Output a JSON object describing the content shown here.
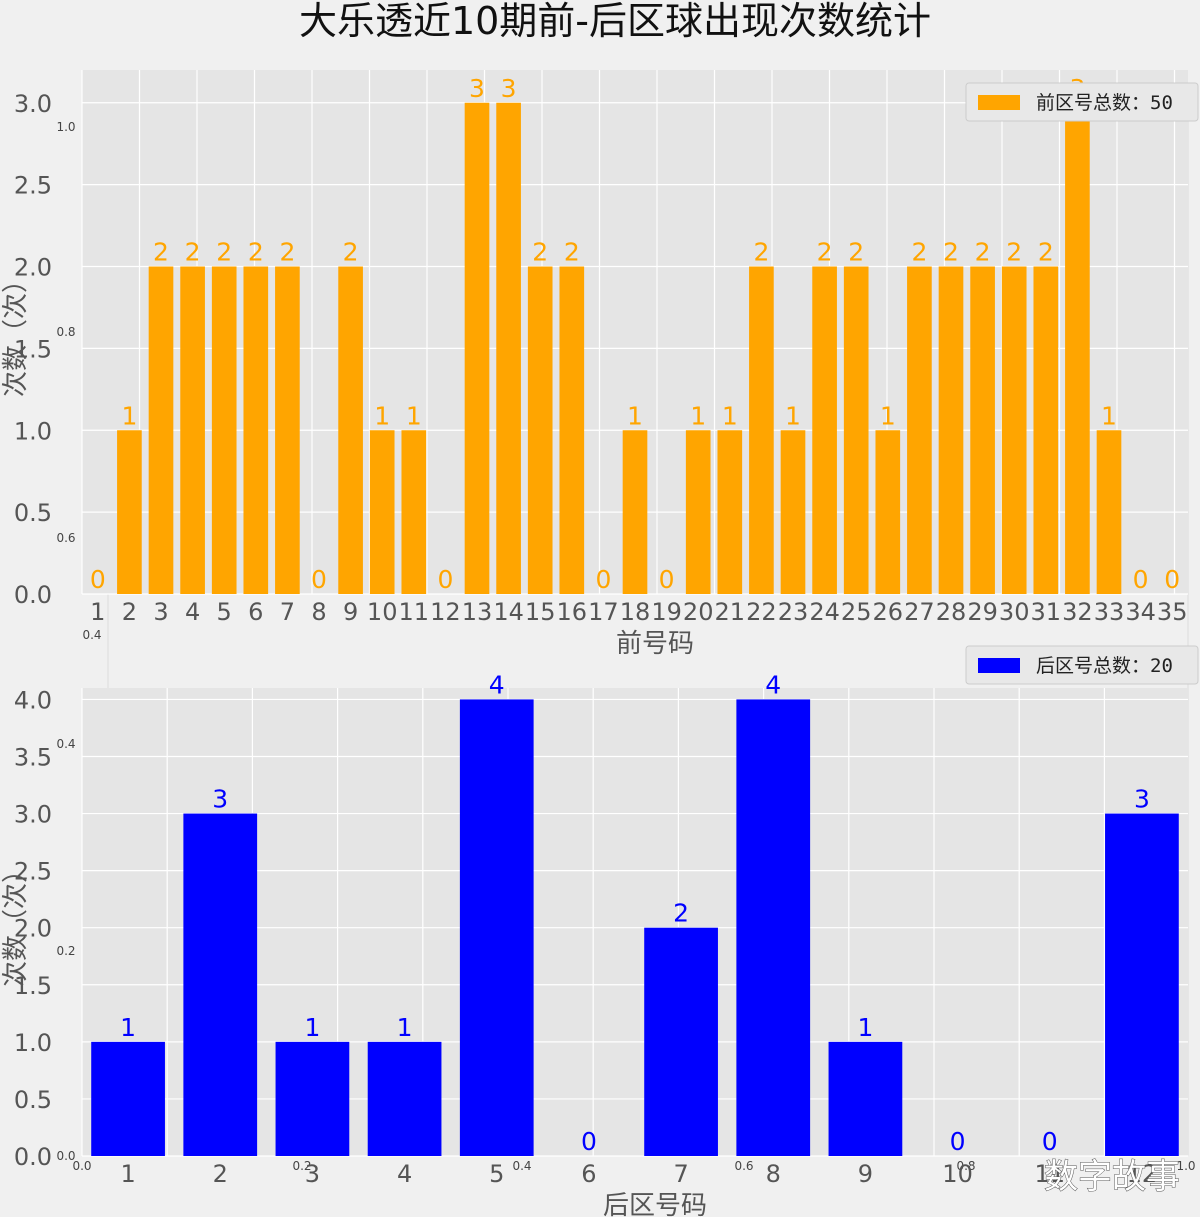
{
  "title": "大乐透近10期前-后区球出现次数统计",
  "watermark": "数字故事",
  "background_axis_ticks": [
    "0.0",
    "0.2",
    "0.4",
    "0.6",
    "0.8",
    "1.0"
  ],
  "colors": {
    "front": "#FFA500",
    "back": "#0000FF",
    "panel_bg": "#E5E5E5",
    "figure_bg": "#F0F0F0",
    "grid": "#FFFFFF"
  },
  "chart_data": [
    {
      "type": "bar",
      "name": "front",
      "categories": [
        "1",
        "2",
        "3",
        "4",
        "5",
        "6",
        "7",
        "8",
        "9",
        "10",
        "11",
        "12",
        "13",
        "14",
        "15",
        "16",
        "17",
        "18",
        "19",
        "20",
        "21",
        "22",
        "23",
        "24",
        "25",
        "26",
        "27",
        "28",
        "29",
        "30",
        "31",
        "32",
        "33",
        "34",
        "35"
      ],
      "values": [
        0,
        1,
        2,
        2,
        2,
        2,
        2,
        0,
        2,
        1,
        1,
        0,
        3,
        3,
        2,
        2,
        0,
        1,
        0,
        1,
        1,
        2,
        1,
        2,
        2,
        1,
        2,
        2,
        2,
        2,
        2,
        3,
        1,
        0,
        0
      ],
      "value_labels": [
        "0",
        "1",
        "2",
        "2",
        "2",
        "2",
        "2",
        "0",
        "2",
        "1",
        "1",
        "0",
        "3",
        "3",
        "2",
        "2",
        "0",
        "1",
        "0",
        "1",
        "1",
        "2",
        "1",
        "2",
        "2",
        "1",
        "2",
        "2",
        "2",
        "2",
        "2",
        "3",
        "1",
        "0",
        "0"
      ],
      "xlabel": "前号码",
      "ylabel": "次数（次）",
      "ylim": [
        0,
        3.2
      ],
      "yticks": [
        "0.0",
        "0.5",
        "1.0",
        "1.5",
        "2.0",
        "2.5",
        "3.0"
      ],
      "legend": "前区号总数：50",
      "legend_position": "top-right",
      "grid": true
    },
    {
      "type": "bar",
      "name": "back",
      "categories": [
        "1",
        "2",
        "3",
        "4",
        "5",
        "6",
        "7",
        "8",
        "9",
        "10",
        "11",
        "12"
      ],
      "values": [
        1,
        3,
        1,
        1,
        4,
        0,
        2,
        4,
        1,
        0,
        0,
        3
      ],
      "value_labels": [
        "1",
        "3",
        "1",
        "1",
        "4",
        "0",
        "2",
        "4",
        "1",
        "0",
        "0",
        "3"
      ],
      "xlabel": "后区号码",
      "ylabel": "次数（次）",
      "ylim": [
        0,
        4.1
      ],
      "yticks": [
        "0.0",
        "0.5",
        "1.0",
        "1.5",
        "2.0",
        "2.5",
        "3.0",
        "3.5",
        "4.0"
      ],
      "legend": "后区号总数：20",
      "legend_position": "top-right",
      "grid": true
    }
  ]
}
